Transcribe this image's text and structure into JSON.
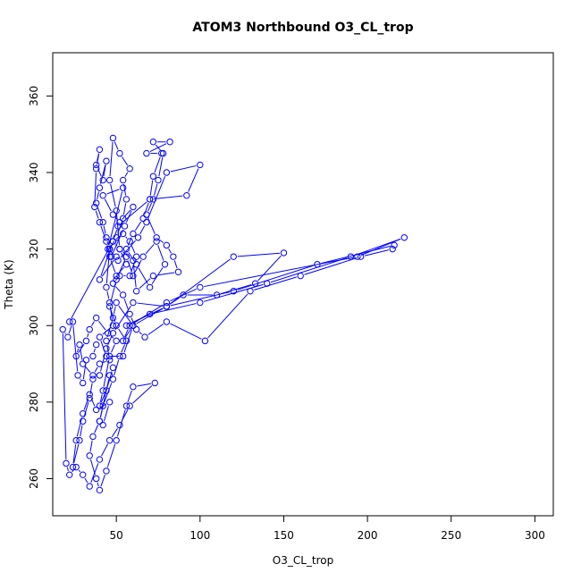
{
  "chart_data": {
    "type": "line",
    "title": "ATOM3 Northbound O3_CL_trop",
    "xlabel": "O3_CL_trop",
    "ylabel": "Theta (K)",
    "xlim": [
      12,
      311
    ],
    "ylim": [
      250.3,
      371.3
    ],
    "x_ticks": [
      50,
      100,
      150,
      200,
      250,
      300
    ],
    "y_ticks": [
      260,
      280,
      300,
      320,
      340,
      360
    ],
    "x_tick_labels": [
      "50",
      "100",
      "150",
      "200",
      "250",
      "300"
    ],
    "y_tick_labels": [
      "260",
      "280",
      "300",
      "320",
      "340",
      "360"
    ],
    "grid": false,
    "marker": "open-circle",
    "series_color": "#0000ff",
    "series": [
      {
        "name": "",
        "points": [
          [
            22,
            301
          ],
          [
            48,
            322
          ],
          [
            40,
            312
          ],
          [
            50,
            318
          ],
          [
            45,
            320
          ],
          [
            54,
            336
          ],
          [
            42,
            334
          ],
          [
            48,
            329
          ],
          [
            52,
            327
          ],
          [
            60,
            331
          ],
          [
            55,
            326
          ],
          [
            47,
            318
          ],
          [
            51,
            317
          ],
          [
            63,
            323
          ],
          [
            68,
            327
          ],
          [
            80,
            340
          ],
          [
            100,
            342
          ],
          [
            92,
            334
          ],
          [
            70,
            333
          ],
          [
            51,
            326
          ],
          [
            48,
            322
          ],
          [
            46,
            320
          ],
          [
            44,
            310
          ],
          [
            46,
            306
          ],
          [
            48,
            300
          ],
          [
            40,
            297
          ],
          [
            44,
            292
          ],
          [
            54,
            292
          ],
          [
            60,
            300
          ],
          [
            50,
            306
          ],
          [
            48,
            302
          ],
          [
            44,
            296
          ],
          [
            46,
            291
          ],
          [
            40,
            290
          ],
          [
            36,
            287
          ],
          [
            30,
            290
          ],
          [
            28,
            295
          ],
          [
            26,
            292
          ],
          [
            32,
            296
          ],
          [
            34,
            299
          ],
          [
            38,
            302
          ],
          [
            45,
            298
          ],
          [
            50,
            296
          ],
          [
            46,
            292
          ],
          [
            42,
            283
          ],
          [
            40,
            279
          ],
          [
            44,
            283
          ],
          [
            48,
            289
          ],
          [
            46,
            287
          ],
          [
            40,
            275
          ],
          [
            42,
            274
          ],
          [
            46,
            280
          ],
          [
            38,
            278
          ],
          [
            34,
            282
          ],
          [
            30,
            277
          ],
          [
            26,
            270
          ],
          [
            24,
            263
          ],
          [
            28,
            270
          ],
          [
            30,
            275
          ],
          [
            34,
            281
          ],
          [
            36,
            286
          ],
          [
            40,
            287
          ],
          [
            44,
            294
          ],
          [
            48,
            298
          ],
          [
            60,
            306
          ],
          [
            80,
            305
          ],
          [
            90,
            308
          ],
          [
            110,
            308
          ],
          [
            133,
            311
          ],
          [
            150,
            319
          ],
          [
            120,
            318
          ],
          [
            80,
            305
          ],
          [
            60,
            300
          ],
          [
            54,
            296
          ],
          [
            58,
            300
          ],
          [
            80,
            306
          ],
          [
            100,
            310
          ],
          [
            194,
            318
          ],
          [
            222,
            323
          ],
          [
            190,
            318
          ],
          [
            140,
            311
          ],
          [
            100,
            306
          ],
          [
            70,
            303
          ],
          [
            56,
            300
          ],
          [
            80,
            305
          ],
          [
            120,
            309
          ],
          [
            170,
            316
          ],
          [
            216,
            321
          ],
          [
            215,
            320
          ],
          [
            196,
            318
          ],
          [
            160,
            313
          ],
          [
            130,
            309
          ],
          [
            103,
            296
          ],
          [
            80,
            301
          ],
          [
            67,
            297
          ],
          [
            62,
            299
          ],
          [
            58,
            303
          ],
          [
            54,
            308
          ],
          [
            48,
            311
          ],
          [
            52,
            313
          ],
          [
            58,
            313
          ],
          [
            62,
            318
          ],
          [
            58,
            322
          ],
          [
            54,
            324
          ],
          [
            48,
            322
          ],
          [
            52,
            320
          ],
          [
            56,
            316
          ],
          [
            50,
            313
          ],
          [
            46,
            318
          ],
          [
            44,
            322
          ],
          [
            40,
            327
          ],
          [
            37,
            331
          ],
          [
            38,
            341
          ],
          [
            40,
            346
          ],
          [
            38,
            342
          ],
          [
            42,
            338
          ],
          [
            44,
            343
          ],
          [
            40,
            336
          ],
          [
            38,
            332
          ],
          [
            42,
            327
          ],
          [
            44,
            323
          ],
          [
            46,
            320
          ],
          [
            50,
            323
          ],
          [
            54,
            328
          ],
          [
            56,
            333
          ],
          [
            54,
            338
          ],
          [
            58,
            341
          ],
          [
            52,
            345
          ],
          [
            48,
            349
          ],
          [
            46,
            338
          ],
          [
            50,
            330
          ],
          [
            52,
            320
          ],
          [
            60,
            317
          ],
          [
            62,
            309
          ],
          [
            72,
            313
          ],
          [
            87,
            314
          ],
          [
            84,
            318
          ],
          [
            80,
            321
          ],
          [
            74,
            323
          ],
          [
            68,
            329
          ],
          [
            72,
            333
          ],
          [
            75,
            338
          ],
          [
            78,
            345
          ],
          [
            72,
            348
          ],
          [
            82,
            348
          ],
          [
            68,
            345
          ],
          [
            77,
            345
          ],
          [
            72,
            339
          ],
          [
            70,
            333
          ],
          [
            66,
            328
          ],
          [
            60,
            324
          ],
          [
            56,
            320
          ],
          [
            62,
            316
          ],
          [
            70,
            310
          ],
          [
            79,
            316
          ],
          [
            74,
            322
          ],
          [
            66,
            318
          ],
          [
            60,
            313
          ],
          [
            56,
            318
          ],
          [
            50,
            312
          ],
          [
            46,
            305
          ],
          [
            50,
            300
          ],
          [
            56,
            296
          ],
          [
            52,
            292
          ],
          [
            48,
            286
          ],
          [
            42,
            279
          ],
          [
            40,
            275
          ],
          [
            36,
            271
          ],
          [
            34,
            266
          ],
          [
            38,
            260
          ],
          [
            40,
            257
          ],
          [
            44,
            262
          ],
          [
            50,
            270
          ],
          [
            56,
            279
          ],
          [
            60,
            284
          ],
          [
            73,
            285
          ],
          [
            58,
            279
          ],
          [
            52,
            274
          ],
          [
            46,
            270
          ],
          [
            40,
            265
          ],
          [
            34,
            258
          ],
          [
            30,
            261
          ],
          [
            26,
            263
          ],
          [
            22,
            261
          ],
          [
            20,
            264
          ],
          [
            18,
            299
          ],
          [
            21,
            297
          ],
          [
            24,
            301
          ],
          [
            27,
            287
          ],
          [
            30,
            285
          ],
          [
            32,
            291
          ],
          [
            36,
            292
          ],
          [
            38,
            295
          ]
        ]
      }
    ]
  }
}
